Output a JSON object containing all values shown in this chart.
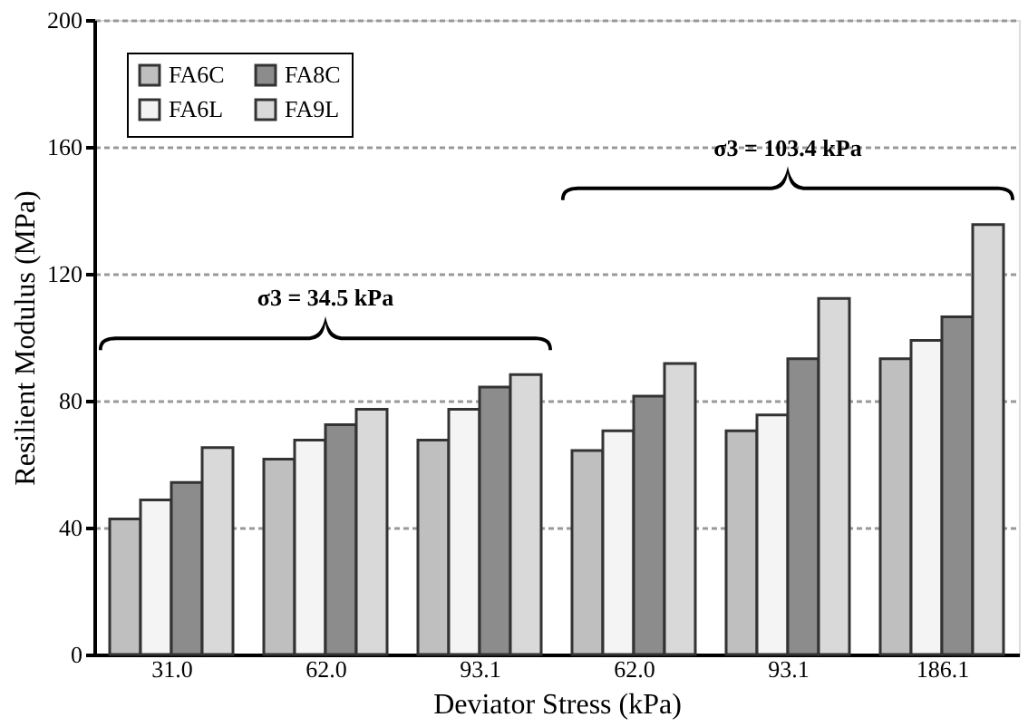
{
  "chart_data": {
    "type": "bar",
    "xlabel": "Deviator Stress (kPa)",
    "ylabel": "Resilient Modulus (MPa)",
    "categories": [
      "31.0",
      "62.0",
      "93.1",
      "62.0",
      "93.1",
      "186.1"
    ],
    "series": [
      {
        "name": "FA6C",
        "color": "#bfbfbf",
        "values": [
          42.7,
          61.6,
          67.6,
          64.3,
          70.5,
          93.2
        ]
      },
      {
        "name": "FA6L",
        "color": "#f4f4f4",
        "values": [
          48.7,
          67.6,
          77.3,
          70.5,
          75.5,
          99.0
        ]
      },
      {
        "name": "FA8C",
        "color": "#8c8c8c",
        "values": [
          54.2,
          72.4,
          84.3,
          81.4,
          93.2,
          106.4
        ]
      },
      {
        "name": "FA9L",
        "color": "#d9d9d9",
        "values": [
          65.2,
          77.3,
          88.2,
          91.7,
          112.2,
          135.5
        ]
      }
    ],
    "ylim": [
      0,
      200
    ],
    "yticks": [
      0,
      40,
      80,
      120,
      160,
      200
    ],
    "grid": "y",
    "legend": "top left",
    "annotations": [
      "σ3 = 34.5 kPa",
      "σ3 = 103.4 kPa"
    ]
  }
}
